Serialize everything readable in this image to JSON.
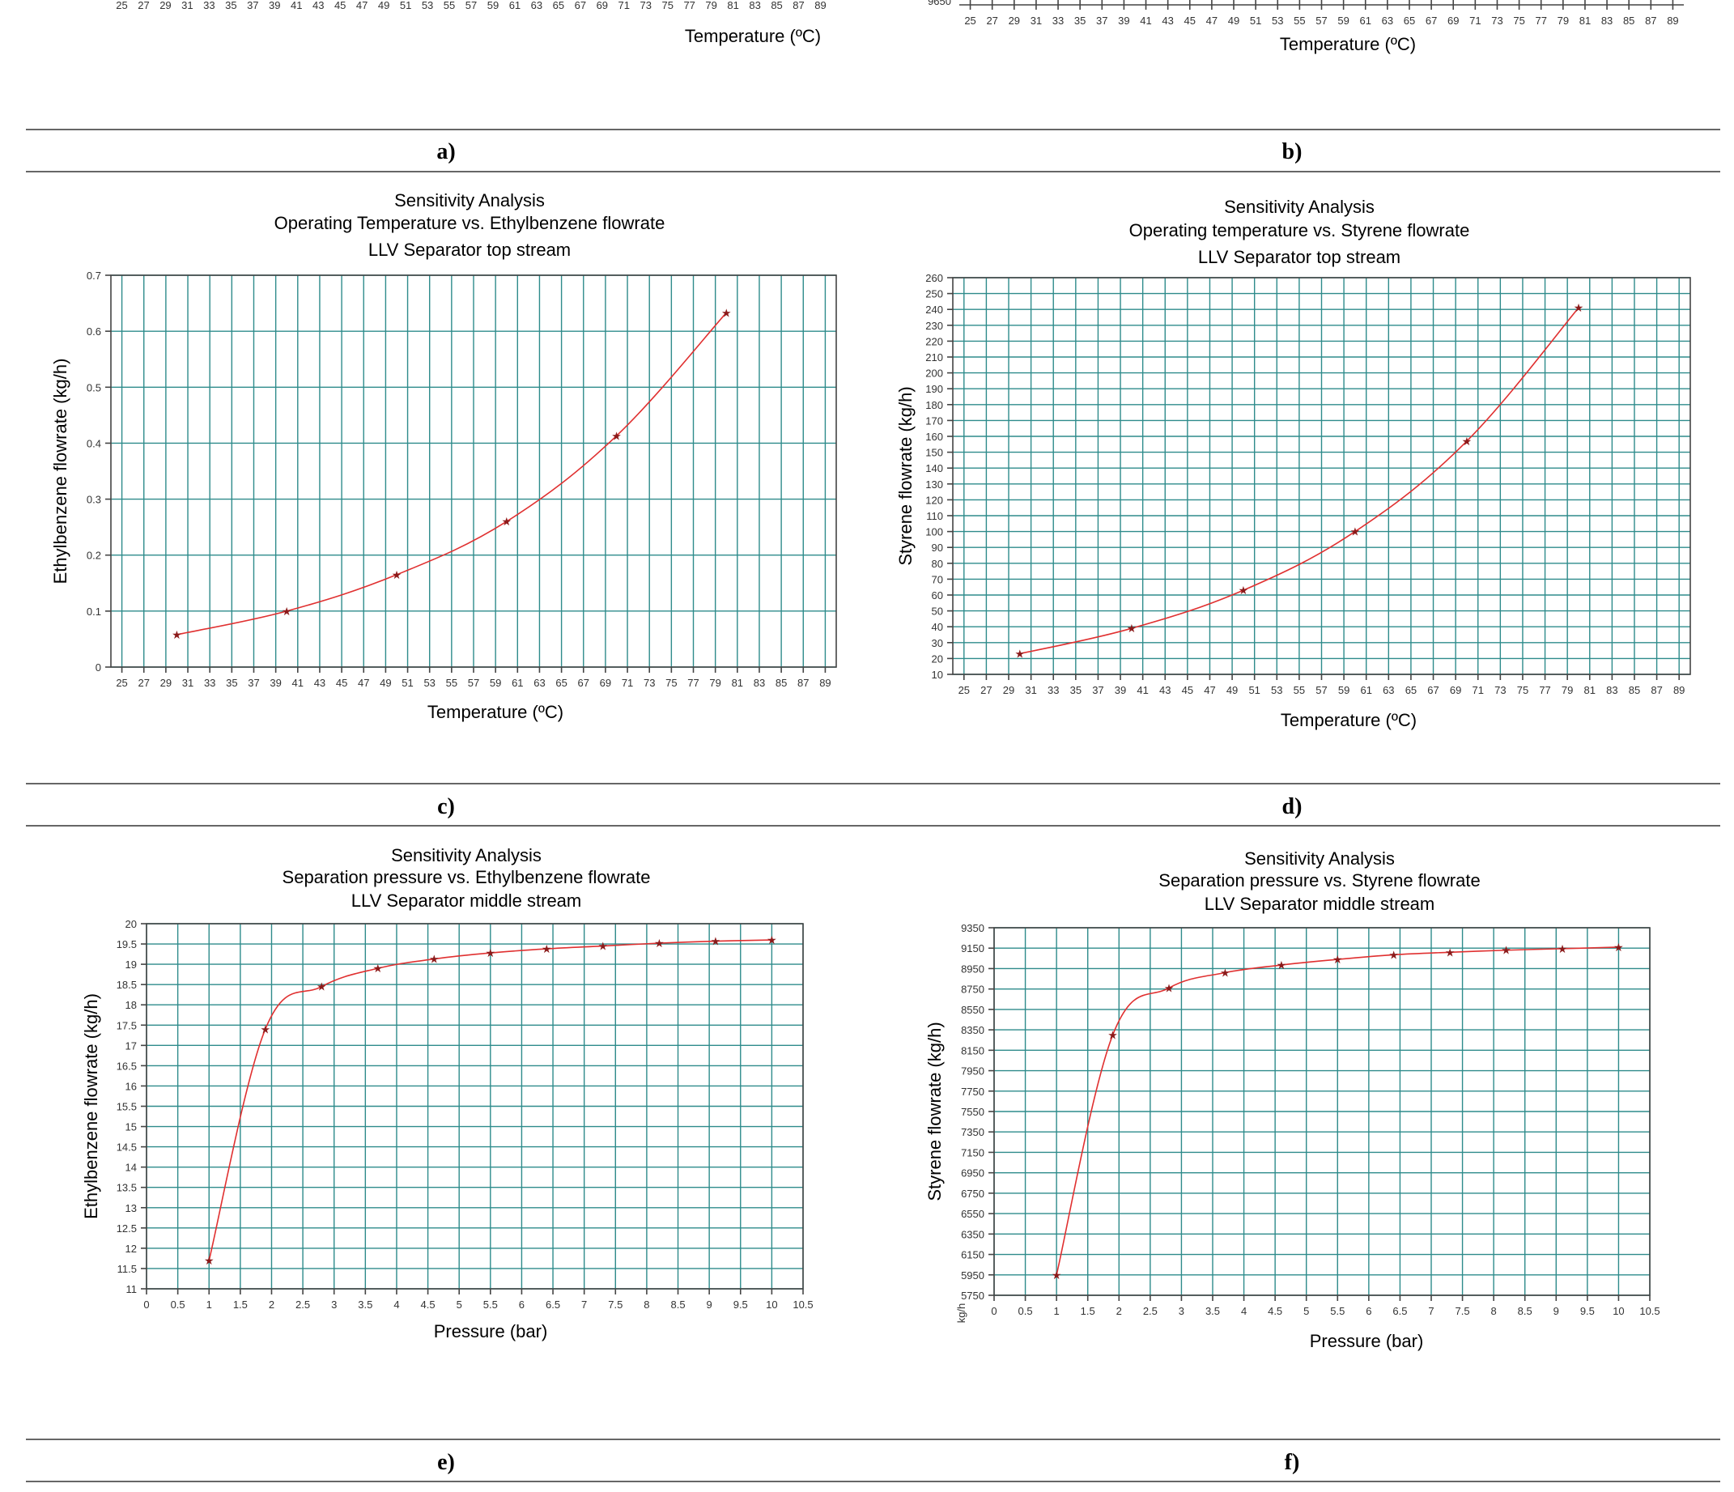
{
  "panel_labels": [
    "a)",
    "b)",
    "c)",
    "d)",
    "e)",
    "f)"
  ],
  "chart_data": [
    {
      "id": "a",
      "type": "line",
      "partial": true,
      "xlabel": "Temperature (ºC)",
      "xticks": [
        25,
        27,
        29,
        31,
        33,
        35,
        37,
        39,
        41,
        43,
        45,
        47,
        49,
        51,
        53,
        55,
        57,
        59,
        61,
        63,
        65,
        67,
        69,
        71,
        73,
        75,
        77,
        79,
        81,
        83,
        85,
        87,
        89
      ],
      "xlim": [
        24,
        90
      ]
    },
    {
      "id": "b",
      "type": "line",
      "partial": true,
      "xlabel": "Temperature (ºC)",
      "ytick_partial": "9650",
      "xticks": [
        25,
        27,
        29,
        31,
        33,
        35,
        37,
        39,
        41,
        43,
        45,
        47,
        49,
        51,
        53,
        55,
        57,
        59,
        61,
        63,
        65,
        67,
        69,
        71,
        73,
        75,
        77,
        79,
        81,
        83,
        85,
        87,
        89
      ],
      "xlim": [
        24,
        90
      ]
    },
    {
      "id": "c",
      "type": "line",
      "title_lines": [
        "Sensitivity Analysis",
        "Operating Temperature vs. Ethylbenzene flowrate",
        "LLV Separator top stream"
      ],
      "xlabel": "Temperature (ºC)",
      "ylabel": "Ethylbenzene flowrate (kg/h)",
      "xticks": [
        25,
        27,
        29,
        31,
        33,
        35,
        37,
        39,
        41,
        43,
        45,
        47,
        49,
        51,
        53,
        55,
        57,
        59,
        61,
        63,
        65,
        67,
        69,
        71,
        73,
        75,
        77,
        79,
        81,
        83,
        85,
        87,
        89
      ],
      "yticks": [
        0,
        0.1,
        0.2,
        0.3,
        0.4,
        0.5,
        0.6,
        0.7
      ],
      "xlim": [
        24,
        90
      ],
      "ylim": [
        0,
        0.7
      ],
      "grid": true,
      "series": [
        {
          "x": [
            30,
            40,
            50,
            60,
            70,
            80
          ],
          "y": [
            0.058,
            0.1,
            0.165,
            0.26,
            0.413,
            0.633
          ]
        }
      ]
    },
    {
      "id": "d",
      "type": "line",
      "title_lines": [
        "Sensitivity Analysis",
        "Operating temperature vs. Styrene flowrate",
        "LLV Separator top stream"
      ],
      "xlabel": "Temperature (ºC)",
      "ylabel": "Styrene flowrate (kg/h)",
      "xticks": [
        25,
        27,
        29,
        31,
        33,
        35,
        37,
        39,
        41,
        43,
        45,
        47,
        49,
        51,
        53,
        55,
        57,
        59,
        61,
        63,
        65,
        67,
        69,
        71,
        73,
        75,
        77,
        79,
        81,
        83,
        85,
        87,
        89
      ],
      "yticks": [
        10,
        20,
        30,
        40,
        50,
        60,
        70,
        80,
        90,
        100,
        110,
        120,
        130,
        140,
        150,
        160,
        170,
        180,
        190,
        200,
        210,
        220,
        230,
        240,
        250,
        260
      ],
      "xlim": [
        24,
        90
      ],
      "ylim": [
        10,
        260
      ],
      "grid": true,
      "series": [
        {
          "x": [
            30,
            40,
            50,
            60,
            70,
            80
          ],
          "y": [
            23,
            39,
            63,
            100,
            157,
            241
          ]
        }
      ]
    },
    {
      "id": "e",
      "type": "line",
      "title_lines": [
        "Sensitivity Analysis",
        "Separation pressure vs. Ethylbenzene flowrate",
        "LLV Separator middle stream"
      ],
      "xlabel": "Pressure (bar)",
      "ylabel": "Ethylbenzene flowrate (kg/h)",
      "xticks": [
        "0",
        "0.5",
        "1",
        "1.5",
        "2",
        "2.5",
        "3",
        "3.5",
        "4",
        "4.5",
        "5",
        "5.5",
        "6",
        "6.5",
        "7",
        "7.5",
        "8",
        "8.5",
        "9",
        "9.5",
        "10",
        "10.5"
      ],
      "yticks": [
        "11",
        "11.5",
        "12",
        "12.5",
        "13",
        "13.5",
        "14",
        "14.5",
        "15",
        "15.5",
        "16",
        "16.5",
        "17",
        "17.5",
        "18",
        "18.5",
        "19",
        "19.5",
        "20"
      ],
      "xlim": [
        0,
        10.5
      ],
      "ylim": [
        11,
        20
      ],
      "grid": true,
      "series": [
        {
          "x": [
            1,
            1.9,
            2.8,
            3.7,
            4.6,
            5.5,
            6.4,
            7.3,
            8.2,
            9.1,
            10
          ],
          "y": [
            11.7,
            17.4,
            18.45,
            18.9,
            19.13,
            19.28,
            19.38,
            19.45,
            19.52,
            19.57,
            19.6
          ]
        }
      ]
    },
    {
      "id": "f",
      "type": "line",
      "title_lines": [
        "Sensitivity Analysis",
        "Separation pressure vs. Styrene flowrate",
        "LLV Separator middle stream"
      ],
      "xlabel": "Pressure (bar)",
      "ylabel": "Styrene flowrate (kg/h)",
      "corner_label": "kg/h",
      "xticks": [
        "0",
        "0.5",
        "1",
        "1.5",
        "2",
        "2.5",
        "3",
        "3.5",
        "4",
        "4.5",
        "5",
        "5.5",
        "6",
        "6.5",
        "7",
        "7.5",
        "8",
        "8.5",
        "9",
        "9.5",
        "10",
        "10.5"
      ],
      "yticks": [
        "5750",
        "5950",
        "6150",
        "6350",
        "6550",
        "6750",
        "6950",
        "7150",
        "7350",
        "7550",
        "7750",
        "7950",
        "8150",
        "8350",
        "8550",
        "8750",
        "8950",
        "9150",
        "9350"
      ],
      "xlim": [
        0,
        10.5
      ],
      "ylim": [
        5750,
        9350
      ],
      "grid": true,
      "series": [
        {
          "x": [
            1,
            1.9,
            2.8,
            3.7,
            4.6,
            5.5,
            6.4,
            7.3,
            8.2,
            9.1,
            10
          ],
          "y": [
            5950,
            8300,
            8760,
            8910,
            8985,
            9040,
            9085,
            9110,
            9130,
            9145,
            9160
          ]
        }
      ]
    }
  ]
}
